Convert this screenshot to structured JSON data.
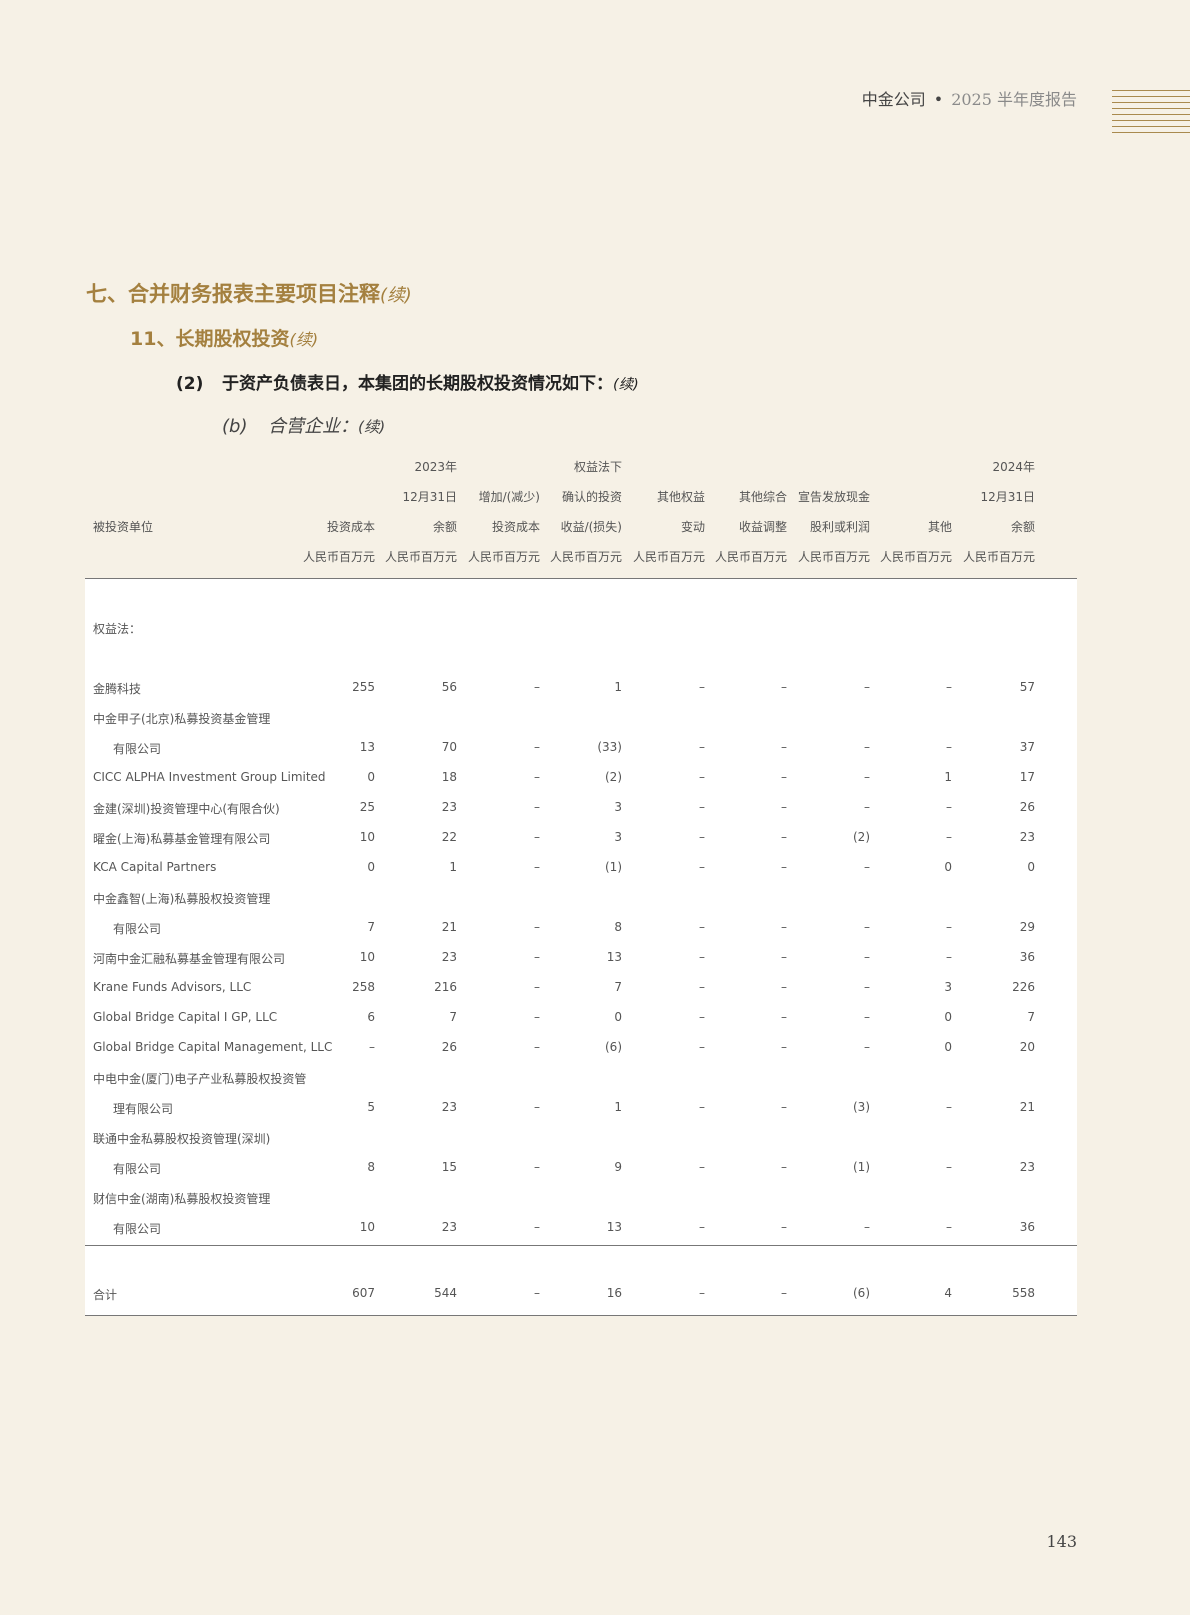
{
  "header": {
    "company": "中金公司",
    "separator": "•",
    "report": "2025 半年度报告"
  },
  "section": {
    "title": "七、合并财务报表主要项目注释",
    "cont": "(续)"
  },
  "subsection": {
    "title": "11、长期股权投资",
    "cont": "(续)"
  },
  "item": {
    "num": "(2)",
    "title": "于资产负债表日，本集团的长期股权投资情况如下：",
    "cont": "(续)"
  },
  "subitem": {
    "num": "(b)",
    "title": "合营企业：",
    "cont": "(续)"
  },
  "table": {
    "header_rows": [
      [
        "",
        "",
        "2023年",
        "",
        "权益法下",
        "",
        "",
        "",
        "",
        "2024年"
      ],
      [
        "",
        "",
        "12月31日",
        "增加/(减少)",
        "确认的投资",
        "其他权益",
        "其他综合",
        "宣告发放现金",
        "",
        "12月31日"
      ],
      [
        "被投资单位",
        "投资成本",
        "余额",
        "投资成本",
        "收益/(损失)",
        "变动",
        "收益调整",
        "股利或利润",
        "其他",
        "余额"
      ],
      [
        "",
        "人民币百万元",
        "人民币百万元",
        "人民币百万元",
        "人民币百万元",
        "人民币百万元",
        "人民币百万元",
        "人民币百万元",
        "人民币百万元",
        "人民币百万元"
      ]
    ],
    "group_label": "权益法：",
    "rows": [
      {
        "name": "金腾科技",
        "values": [
          "255",
          "56",
          "–",
          "1",
          "–",
          "–",
          "–",
          "–",
          "57"
        ]
      },
      {
        "name": "中金甲子(北京)私募投资基金管理",
        "values": []
      },
      {
        "name": "有限公司",
        "indent": true,
        "values": [
          "13",
          "70",
          "–",
          "(33)",
          "–",
          "–",
          "–",
          "–",
          "37"
        ]
      },
      {
        "name": "CICC ALPHA Investment Group Limited",
        "values": [
          "0",
          "18",
          "–",
          "(2)",
          "–",
          "–",
          "–",
          "1",
          "17"
        ]
      },
      {
        "name": "金建(深圳)投资管理中心(有限合伙)",
        "values": [
          "25",
          "23",
          "–",
          "3",
          "–",
          "–",
          "–",
          "–",
          "26"
        ]
      },
      {
        "name": "曜金(上海)私募基金管理有限公司",
        "values": [
          "10",
          "22",
          "–",
          "3",
          "–",
          "–",
          "(2)",
          "–",
          "23"
        ]
      },
      {
        "name": "KCA Capital Partners",
        "values": [
          "0",
          "1",
          "–",
          "(1)",
          "–",
          "–",
          "–",
          "0",
          "0"
        ]
      },
      {
        "name": "中金鑫智(上海)私募股权投资管理",
        "values": []
      },
      {
        "name": "有限公司",
        "indent": true,
        "values": [
          "7",
          "21",
          "–",
          "8",
          "–",
          "–",
          "–",
          "–",
          "29"
        ]
      },
      {
        "name": "河南中金汇融私募基金管理有限公司",
        "values": [
          "10",
          "23",
          "–",
          "13",
          "–",
          "–",
          "–",
          "–",
          "36"
        ]
      },
      {
        "name": "Krane Funds Advisors, LLC",
        "values": [
          "258",
          "216",
          "–",
          "7",
          "–",
          "–",
          "–",
          "3",
          "226"
        ]
      },
      {
        "name": "Global Bridge Capital I GP, LLC",
        "values": [
          "6",
          "7",
          "–",
          "0",
          "–",
          "–",
          "–",
          "0",
          "7"
        ]
      },
      {
        "name": "Global Bridge Capital Management, LLC",
        "values": [
          "–",
          "26",
          "–",
          "(6)",
          "–",
          "–",
          "–",
          "0",
          "20"
        ]
      },
      {
        "name": "中电中金(厦门)电子产业私募股权投资管",
        "values": []
      },
      {
        "name": "理有限公司",
        "indent": true,
        "values": [
          "5",
          "23",
          "–",
          "1",
          "–",
          "–",
          "(3)",
          "–",
          "21"
        ]
      },
      {
        "name": "联通中金私募股权投资管理(深圳)",
        "values": []
      },
      {
        "name": "有限公司",
        "indent": true,
        "values": [
          "8",
          "15",
          "–",
          "9",
          "–",
          "–",
          "(1)",
          "–",
          "23"
        ]
      },
      {
        "name": "财信中金(湖南)私募股权投资管理",
        "values": []
      },
      {
        "name": "有限公司",
        "indent": true,
        "values": [
          "10",
          "23",
          "–",
          "13",
          "–",
          "–",
          "–",
          "–",
          "36"
        ]
      }
    ],
    "total": {
      "name": "合计",
      "values": [
        "607",
        "544",
        "–",
        "16",
        "–",
        "–",
        "(6)",
        "4",
        "558"
      ]
    }
  },
  "page_number": "143",
  "colors": {
    "accent": "#a4803f",
    "background": "#f6f1e6"
  }
}
